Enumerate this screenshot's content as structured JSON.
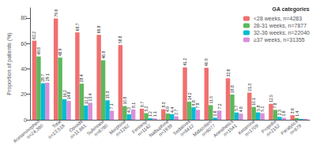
{
  "chart_data": {
    "type": "bar",
    "categories": [
      "Acetaminophen\nn=24,390",
      "Total\nn=13,518",
      "Opioids\nn=11,661",
      "Sufentanil\nn=6790",
      "Morphine\nn=1262",
      "Fentanyl\nn=1142",
      "Nalbuphine\nn=1939",
      "Sedatives\nn=6412",
      "Midazolam\nn=6077",
      "Anesthetics\nn=1541",
      "Ketamine\nn=1709",
      "Propofol\nn=2152",
      "Paralytics\nn=679"
    ],
    "series": [
      {
        "name": "<28 weeks, n=4283",
        "color": "#f07070",
        "values": [
          62.2,
          79.6,
          68.7,
          66.8,
          58.8,
          8.7,
          8.3,
          41.2,
          40.9,
          32.6,
          21.3,
          12.5,
          3.6
        ],
        "value_labels": [
          "62.2",
          "79.6",
          "68.7",
          "66.8",
          "58.8",
          "8.7",
          "8.3",
          "41.2",
          "40.9",
          "32.6",
          "21.3",
          "12.5",
          "3.6"
        ]
      },
      {
        "name": "28-31 weeks, n=7877",
        "color": "#5cb85c",
        "values": [
          49.8,
          48.9,
          28.4,
          46.8,
          10.8,
          5.2,
          4.9,
          14.2,
          11.5,
          19.8,
          10.1,
          7.8,
          1.4
        ],
        "value_labels": [
          "49.8",
          "48.9",
          "28.4",
          "46.8",
          "10.8",
          "5.2",
          "4.9",
          "14.2",
          "11.5",
          "19.8",
          "10.1",
          "7.8",
          "1.4"
        ]
      },
      {
        "name": "32-36 weeks, n=22040",
        "color": "#00bcd4",
        "values": [
          28.7,
          16.2,
          11.2,
          15.3,
          4.3,
          1.2,
          4.4,
          9.8,
          1.6,
          5.7,
          5.8,
          2.3,
          0.7
        ],
        "value_labels": [
          "28.7",
          "16.2",
          "11.2",
          "15.3",
          "4.3",
          "1.2",
          "4.4",
          "9.8",
          "1.6",
          "5.7",
          "5.8",
          "2.3",
          null
        ]
      },
      {
        "name": "≥37 weeks, n=31355",
        "color": "#da8fda",
        "values": [
          29.1,
          14.8,
          13.4,
          7.1,
          8.1,
          1.1,
          2.7,
          7.8,
          7.2,
          4.8,
          5.1,
          1.6,
          0.7
        ],
        "value_labels": [
          "29.1",
          "14.8",
          "13.4",
          "7.1",
          "8.1",
          "1.1",
          "2.7",
          "7.8",
          "7.2",
          "4.8",
          "5.1",
          "1.6",
          null
        ]
      }
    ],
    "ylabel": "Proportion of patients (%)",
    "legend_title": "GA categories",
    "legend": "upper right",
    "ylim": [
      0,
      88
    ],
    "yticks": [
      0,
      20,
      40,
      60,
      80
    ],
    "grid": false,
    "data_labels": true
  }
}
